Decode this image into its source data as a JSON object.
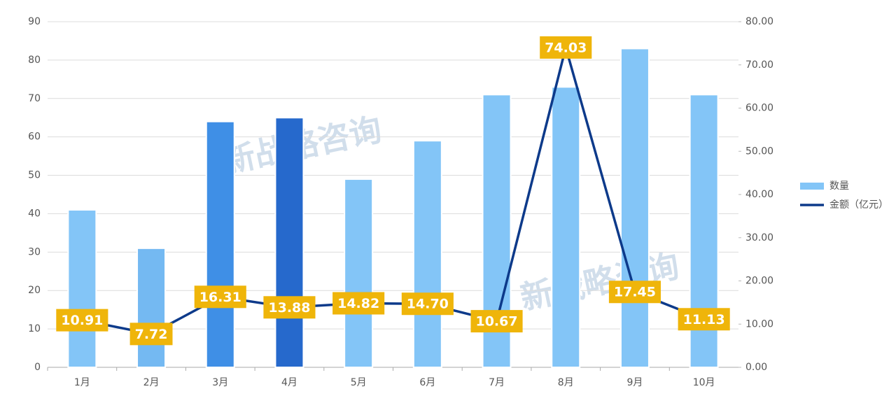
{
  "chart_data": {
    "type": "bar_line",
    "watermark": "新战略咨询",
    "categories": [
      "1月",
      "2月",
      "3月",
      "4月",
      "5月",
      "6月",
      "7月",
      "8月",
      "9月",
      "10月"
    ],
    "series": [
      {
        "name": "数量",
        "type": "bar",
        "color": "#83c5f7",
        "colors": [
          "#83c5f7",
          "#74b9f2",
          "#3f8fe6",
          "#2669cc",
          "#83c5f7",
          "#83c5f7",
          "#83c5f7",
          "#83c5f7",
          "#83c5f7",
          "#83c5f7"
        ],
        "values": [
          41,
          31,
          64,
          65,
          49,
          59,
          71,
          73,
          83,
          71
        ]
      },
      {
        "name": "金额（亿元）",
        "type": "line",
        "axis": "y2",
        "color": "#0d3a8a",
        "label_color": "#efb50a",
        "values": [
          10.91,
          7.72,
          16.31,
          13.88,
          14.82,
          14.7,
          10.67,
          74.03,
          17.45,
          11.13
        ],
        "value_labels": [
          "10.91",
          "7.72",
          "16.31",
          "13.88",
          "14.82",
          "14.70",
          "10.67",
          "74.03",
          "17.45",
          "11.13"
        ]
      }
    ],
    "ylim": [
      0,
      90
    ],
    "yticks": [
      0,
      10,
      20,
      30,
      40,
      50,
      60,
      70,
      80,
      90
    ],
    "y2lim": [
      0,
      80
    ],
    "y2ticks": [
      {
        "value": 0,
        "label": "0.00"
      },
      {
        "value": 10,
        "label": "10.00"
      },
      {
        "value": 20,
        "label": "20.00"
      },
      {
        "value": 30,
        "label": "30.00"
      },
      {
        "value": 40,
        "label": "40.00"
      },
      {
        "value": 50,
        "label": "50.00"
      },
      {
        "value": 60,
        "label": "60.00"
      },
      {
        "value": 70,
        "label": "70.00"
      },
      {
        "value": 80,
        "label": "80.00"
      }
    ],
    "grid": true,
    "legend": "right"
  }
}
